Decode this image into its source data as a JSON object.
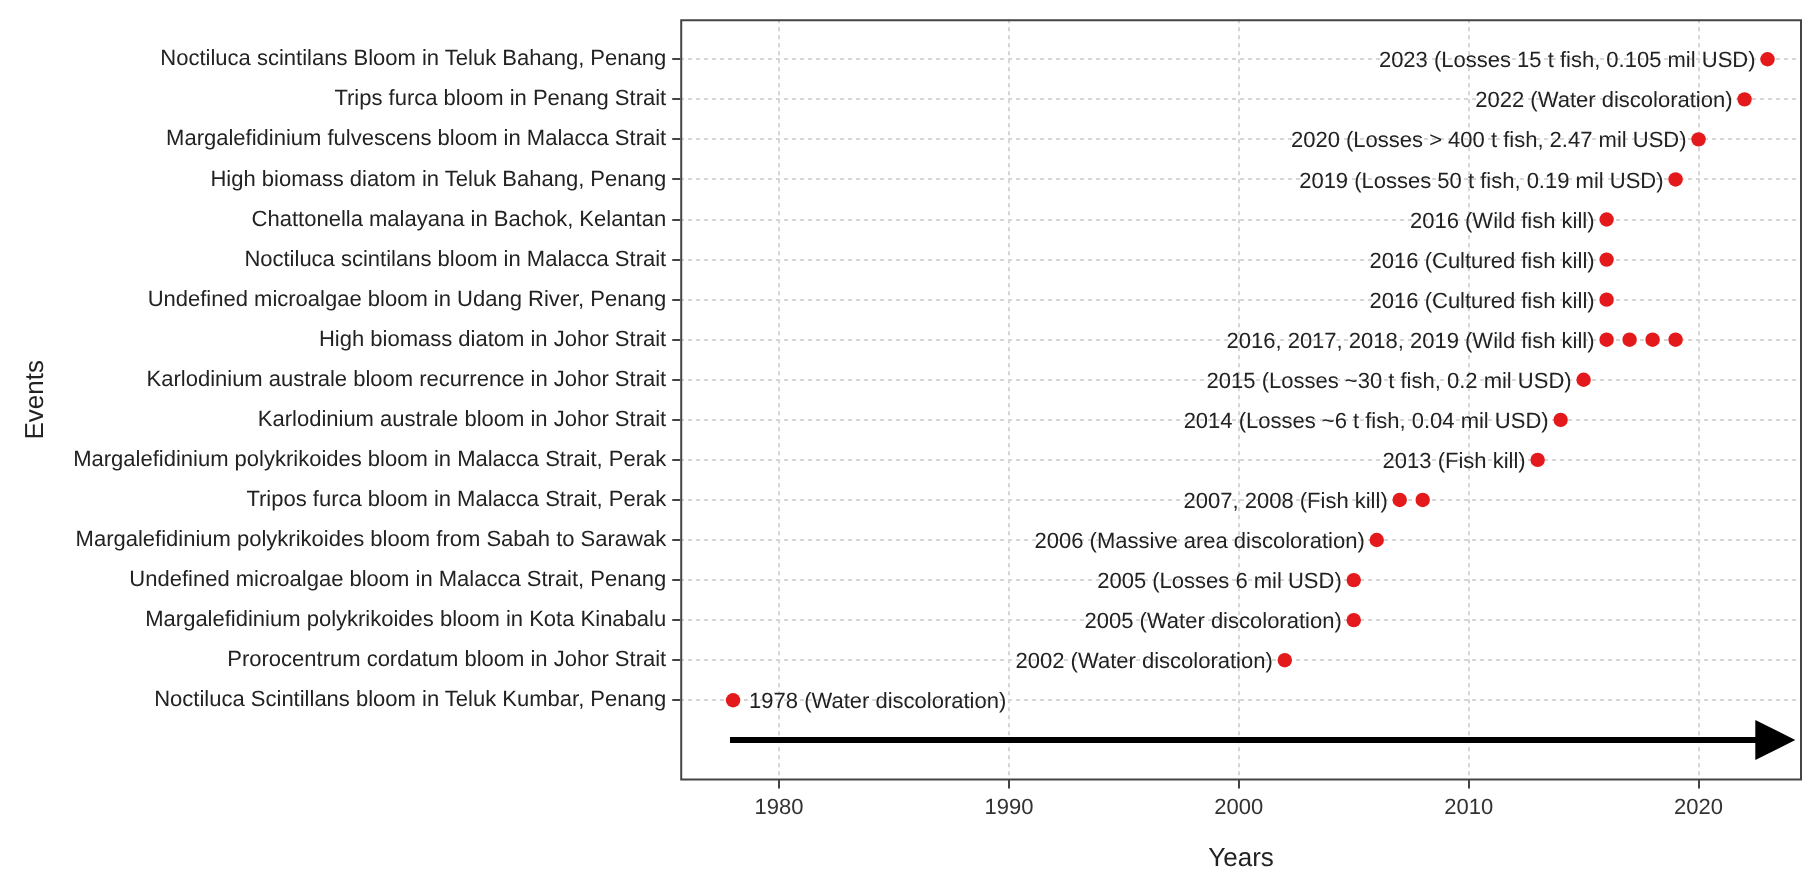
{
  "chart_data": {
    "type": "scatter",
    "orientation": "horizontal",
    "xlabel": "Years",
    "ylabel": "Events",
    "marker": "circle",
    "grid": true,
    "legend": false,
    "categories": [
      "Noctiluca scintilans Bloom in Teluk Bahang, Penang",
      "Trips furca bloom in Penang Strait",
      "Margalefidinium fulvescens bloom in Malacca Strait",
      "High biomass diatom in Teluk Bahang, Penang",
      "Chattonella malayana in Bachok, Kelantan",
      "Noctiluca scintilans bloom in Malacca Strait",
      "Undefined microalgae bloom in Udang River, Penang",
      "High biomass diatom in Johor Strait",
      "Karlodinium australe bloom recurrence in Johor Strait",
      "Karlodinium australe bloom in Johor Strait",
      "Margalefidinium polykrikoides bloom in Malacca Strait, Perak",
      "Tripos furca bloom in Malacca Strait, Perak",
      "Margalefidinium polykrikoides bloom from Sabah to Sarawak",
      "Undefined microalgae bloom in Malacca Strait, Penang",
      "Margalefidinium polykrikoides bloom in Kota Kinabalu",
      "Prorocentrum cordatum bloom in Johor Strait",
      "Noctiluca Scintillans bloom in Teluk Kumbar, Penang"
    ],
    "series": [
      {
        "color": "#e3191c",
        "values": [
          2023,
          2022,
          2020,
          2019,
          2016,
          2016,
          2016,
          2016,
          2015,
          2014,
          2013,
          2007,
          2006,
          2005,
          2005,
          2002,
          1978
        ]
      },
      {
        "color": "#e3191c",
        "values": [
          null,
          null,
          null,
          null,
          null,
          null,
          null,
          2017,
          null,
          null,
          null,
          2008,
          null,
          null,
          null,
          null,
          null
        ]
      },
      {
        "color": "#e3191c",
        "values": [
          null,
          null,
          null,
          null,
          null,
          null,
          null,
          2018,
          null,
          null,
          null,
          null,
          null,
          null,
          null,
          null,
          null
        ]
      },
      {
        "color": "#e3191c",
        "values": [
          null,
          null,
          null,
          null,
          null,
          null,
          null,
          2019,
          null,
          null,
          null,
          null,
          null,
          null,
          null,
          null,
          null
        ]
      }
    ],
    "xlim": [
      1975.7,
      2024.5
    ],
    "xticks": [
      1980,
      1990,
      2000,
      2010,
      2020
    ],
    "annotations": [
      {
        "text": "2023 (Losses 15 t fish, 0.105 mil USD)",
        "x": 2023,
        "y": "Noctiluca scintilans Bloom in Teluk Bahang, Penang"
      },
      {
        "text": "2022 (Water discoloration)",
        "x": 2022,
        "y": "Trips furca bloom in Penang Strait"
      },
      {
        "text": "2020 (Losses > 400 t fish, 2.47 mil USD)",
        "x": 2020,
        "y": "Margalefidinium fulvescens bloom in Malacca Strait"
      },
      {
        "text": "2019 (Losses 50 t fish, 0.19 mil USD)",
        "x": 2019,
        "y": "High biomass diatom in Teluk Bahang, Penang"
      },
      {
        "text": "2016 (Wild fish kill)",
        "x": 2016,
        "y": "Chattonella malayana in Bachok, Kelantan"
      },
      {
        "text": "2016 (Cultured fish kill)",
        "x": 2016,
        "y": "Noctiluca scintilans bloom in Malacca Strait"
      },
      {
        "text": "2016 (Cultured fish kill)",
        "x": 2016,
        "y": "Undefined microalgae bloom in Udang River, Penang"
      },
      {
        "text": "2016, 2017, 2018, 2019 (Wild fish kill)",
        "x": 2016,
        "y": "High biomass diatom in Johor Strait"
      },
      {
        "text": "2015 (Losses ~30 t fish, 0.2 mil USD)",
        "x": 2015,
        "y": "Karlodinium australe bloom recurrence in Johor Strait"
      },
      {
        "text": "2014 (Losses ~6 t fish, 0.04 mil USD)",
        "x": 2014,
        "y": "Karlodinium australe bloom in Johor Strait"
      },
      {
        "text": "2013 (Fish kill)",
        "x": 2013,
        "y": "Margalefidinium polykrikoides bloom in Malacca Strait, Perak"
      },
      {
        "text": "2007, 2008 (Fish kill)",
        "x": 2007,
        "y": "Tripos furca bloom in Malacca Strait, Perak"
      },
      {
        "text": "2006 (Massive area discoloration)",
        "x": 2006,
        "y": "Margalefidinium polykrikoides bloom from Sabah to Sarawak"
      },
      {
        "text": "2005 (Losses 6 mil USD)",
        "x": 2005,
        "y": "Undefined microalgae bloom in Malacca Strait, Penang"
      },
      {
        "text": "2005 (Water discoloration)",
        "x": 2005,
        "y": "Margalefidinium polykrikoides bloom in Kota Kinabalu"
      },
      {
        "text": "2002 (Water discoloration)",
        "x": 2002,
        "y": "Prorocentrum cordatum bloom in Johor Strait"
      },
      {
        "text": "1978 (Water discoloration)",
        "x": 1978,
        "y": "Noctiluca Scintillans bloom in Teluk Kumbar, Penang"
      }
    ]
  }
}
